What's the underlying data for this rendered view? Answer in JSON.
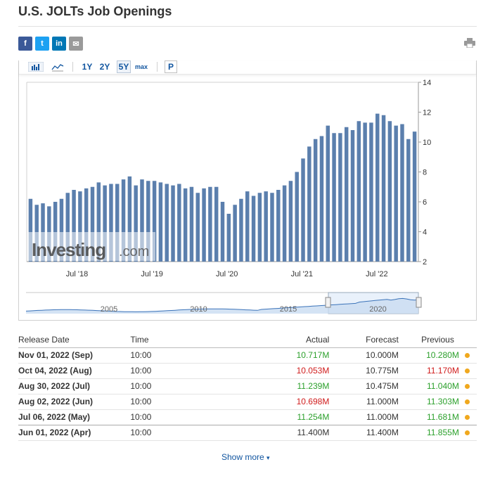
{
  "page": {
    "title": "U.S. JOLTs Job Openings"
  },
  "share": {
    "facebook": "f",
    "twitter": "t",
    "linkedin": "in",
    "email": "✉"
  },
  "toolbar": {
    "range_1y": "1Y",
    "range_2y": "2Y",
    "range_5y": "5Y",
    "range_max": "max",
    "p_label": "P"
  },
  "chart_data": {
    "type": "bar",
    "x_ticks": [
      "Jul '18",
      "Jul '19",
      "Jul '20",
      "Jul '21",
      "Jul '22"
    ],
    "y_ticks": [
      "2",
      "4",
      "6",
      "8",
      "10",
      "12",
      "14"
    ],
    "ylim": [
      2,
      14
    ],
    "values": [
      6.2,
      5.8,
      5.9,
      5.7,
      6.0,
      6.2,
      6.6,
      6.8,
      6.7,
      6.9,
      7.0,
      7.3,
      7.1,
      7.2,
      7.2,
      7.5,
      7.7,
      7.1,
      7.5,
      7.4,
      7.4,
      7.3,
      7.2,
      7.1,
      7.2,
      6.9,
      7.0,
      6.6,
      6.9,
      7.0,
      7.0,
      6.0,
      5.2,
      5.8,
      6.2,
      6.7,
      6.4,
      6.6,
      6.7,
      6.6,
      6.8,
      7.1,
      7.4,
      8.0,
      8.9,
      9.7,
      10.2,
      10.4,
      11.1,
      10.6,
      10.6,
      11.0,
      10.8,
      11.4,
      11.3,
      11.3,
      11.9,
      11.8,
      11.4,
      11.1,
      11.2,
      10.2,
      10.7
    ],
    "watermark": "Investing",
    "watermark_suffix": ".com",
    "navigator_years": [
      "2005",
      "2010",
      "2015",
      "2020"
    ],
    "colors": {
      "bar": "#5b7fad",
      "axis_text": "#333333",
      "navigator_fill": "#c9dcf1",
      "navigator_line": "#3b73b9"
    }
  },
  "table": {
    "headers": {
      "release_date": "Release Date",
      "time": "Time",
      "actual": "Actual",
      "forecast": "Forecast",
      "previous": "Previous"
    },
    "rows": [
      {
        "date": "Nov 01, 2022 (Sep)",
        "time": "10:00",
        "actual": "10.717M",
        "forecast": "10.000M",
        "previous": "10.280M"
      },
      {
        "date": "Oct 04, 2022 (Aug)",
        "time": "10:00",
        "actual": "10.053M",
        "forecast": "10.775M",
        "previous": "11.170M"
      },
      {
        "date": "Aug 30, 2022 (Jul)",
        "time": "10:00",
        "actual": "11.239M",
        "forecast": "10.475M",
        "previous": "11.040M"
      },
      {
        "date": "Aug 02, 2022 (Jun)",
        "time": "10:00",
        "actual": "10.698M",
        "forecast": "11.000M",
        "previous": "11.303M"
      },
      {
        "date": "Jul 06, 2022 (May)",
        "time": "10:00",
        "actual": "11.254M",
        "forecast": "11.000M",
        "previous": "11.681M"
      },
      {
        "date": "Jun 01, 2022 (Apr)",
        "time": "10:00",
        "actual": "11.400M",
        "forecast": "11.400M",
        "previous": "11.855M"
      }
    ],
    "show_more": "Show more"
  }
}
